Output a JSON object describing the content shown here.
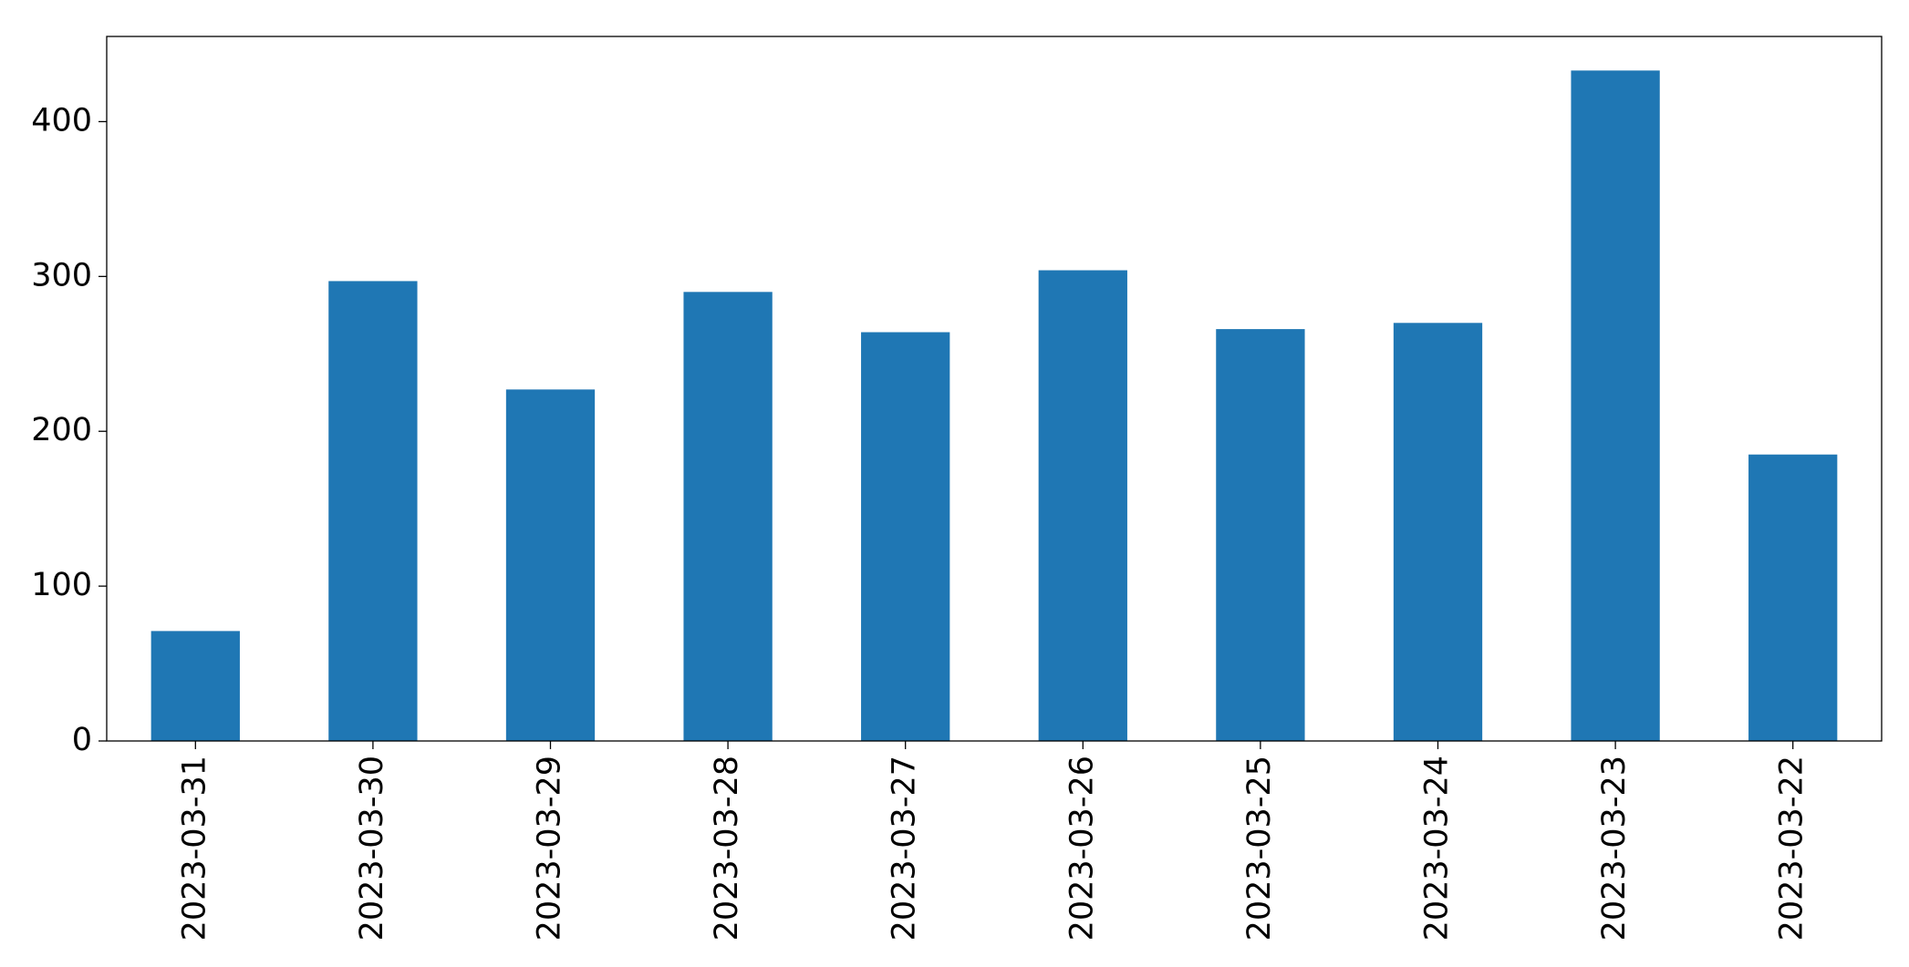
{
  "chart_data": {
    "type": "bar",
    "categories": [
      "2023-03-31",
      "2023-03-30",
      "2023-03-29",
      "2023-03-28",
      "2023-03-27",
      "2023-03-26",
      "2023-03-25",
      "2023-03-24",
      "2023-03-23",
      "2023-03-22"
    ],
    "values": [
      71,
      297,
      227,
      290,
      264,
      304,
      266,
      270,
      433,
      185
    ],
    "color": "#1f77b4",
    "ylim": [
      0,
      455
    ],
    "yticks": [
      0,
      100,
      200,
      300,
      400
    ],
    "grid": false
  }
}
